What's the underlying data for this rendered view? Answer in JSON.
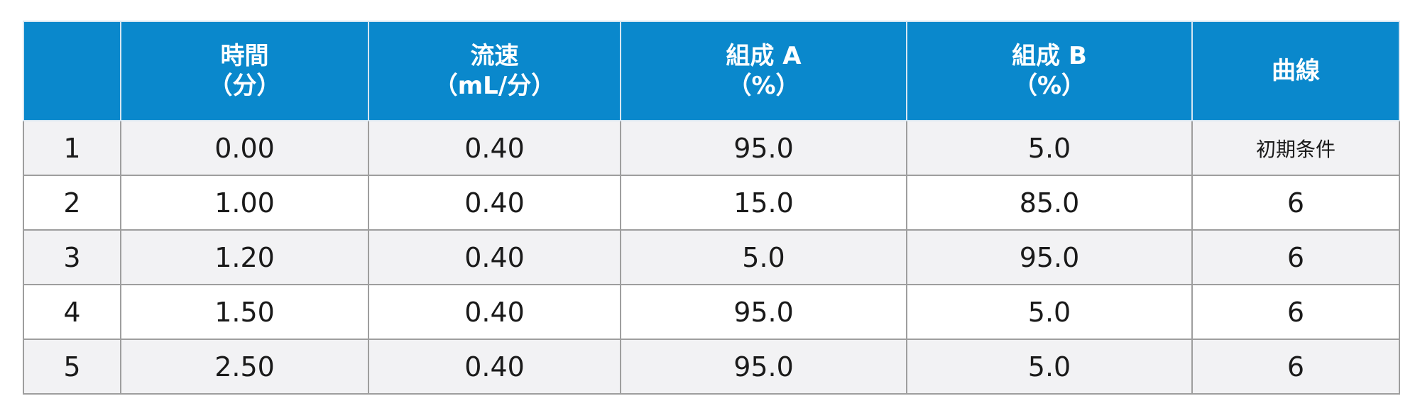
{
  "table": {
    "headers": [
      {
        "line1": "",
        "line2": ""
      },
      {
        "line1": "時間",
        "line2": "（分）"
      },
      {
        "line1": "流速",
        "line2": "（mL/分）"
      },
      {
        "line1": "組成 A",
        "line2": "（%）"
      },
      {
        "line1": "組成 B",
        "line2": "（%）"
      },
      {
        "line1": "曲線",
        "line2": ""
      }
    ],
    "rows": [
      {
        "n": "1",
        "time": "0.00",
        "flow": "0.40",
        "a": "95.0",
        "b": "5.0",
        "curve": "初期条件"
      },
      {
        "n": "2",
        "time": "1.00",
        "flow": "0.40",
        "a": "15.0",
        "b": "85.0",
        "curve": "6"
      },
      {
        "n": "3",
        "time": "1.20",
        "flow": "0.40",
        "a": "5.0",
        "b": "95.0",
        "curve": "6"
      },
      {
        "n": "4",
        "time": "1.50",
        "flow": "0.40",
        "a": "95.0",
        "b": "5.0",
        "curve": "6"
      },
      {
        "n": "5",
        "time": "2.50",
        "flow": "0.40",
        "a": "95.0",
        "b": "5.0",
        "curve": "6"
      }
    ]
  }
}
